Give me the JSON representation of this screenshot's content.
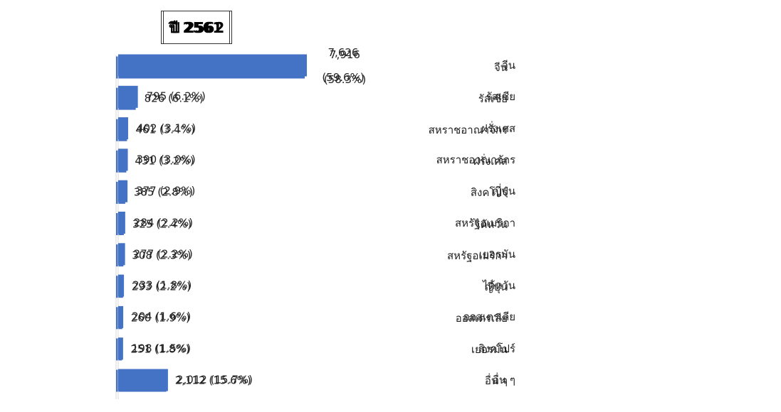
{
  "chart_data": [
    {
      "type": "barh",
      "title": "ปี 2561",
      "color": "#4472c4",
      "categories": [
        "จีน",
        "รัสเซีย",
        "สหราชอาณาจักร",
        "ฝรั่งเศส",
        "สิงคโปร์",
        "ไต้หวัน",
        "สหรัฐอเมริกา",
        "ญี่ปุ่น",
        "ออสเตรเลีย",
        "เยอรมัน",
        "อื่น ๆ"
      ],
      "values": [
        7916,
        826,
        461,
        431,
        385,
        325,
        308,
        293,
        260,
        251,
        2112
      ],
      "value_labels": [
        "7,916 (58.3%)",
        "826 (6.1%)",
        "461 (3.4%)",
        "431 (3.2%)",
        "385 (2.8%)",
        "325 (2.4%)",
        "308 (2.3%)",
        "293 (2.2%)",
        "260 (1.9%)",
        "251 (1.8%)",
        "2,112 (15.6%)"
      ]
    },
    {
      "type": "barh",
      "title": "ปี 2562",
      "color": "#4472c4",
      "categories": [
        "จีน",
        "รัสเซีย",
        "ฝรั่งเศส",
        "สหราชอาณาจักร",
        "ญี่ปุ่น",
        "สหรัฐอเมริกา",
        "เยอรมัน",
        "ไต้หวัน",
        "ออสเตรเลีย",
        "สิงคโปร์",
        "อื่น ๆ"
      ],
      "values": [
        7626,
        795,
        402,
        390,
        377,
        284,
        277,
        233,
        204,
        198,
        2012
      ],
      "value_labels": [
        "7,626 (59.6%)",
        "795 (6.2%)",
        "402 (3.1%)",
        "390 (3.0%)",
        "377 (2.9%)",
        "284 (2.2%)",
        "277 (2.2%)",
        "233 (1.8%)",
        "204 (1.6%)",
        "198 (1.5%)",
        "2,012 (15.7%)"
      ]
    }
  ]
}
